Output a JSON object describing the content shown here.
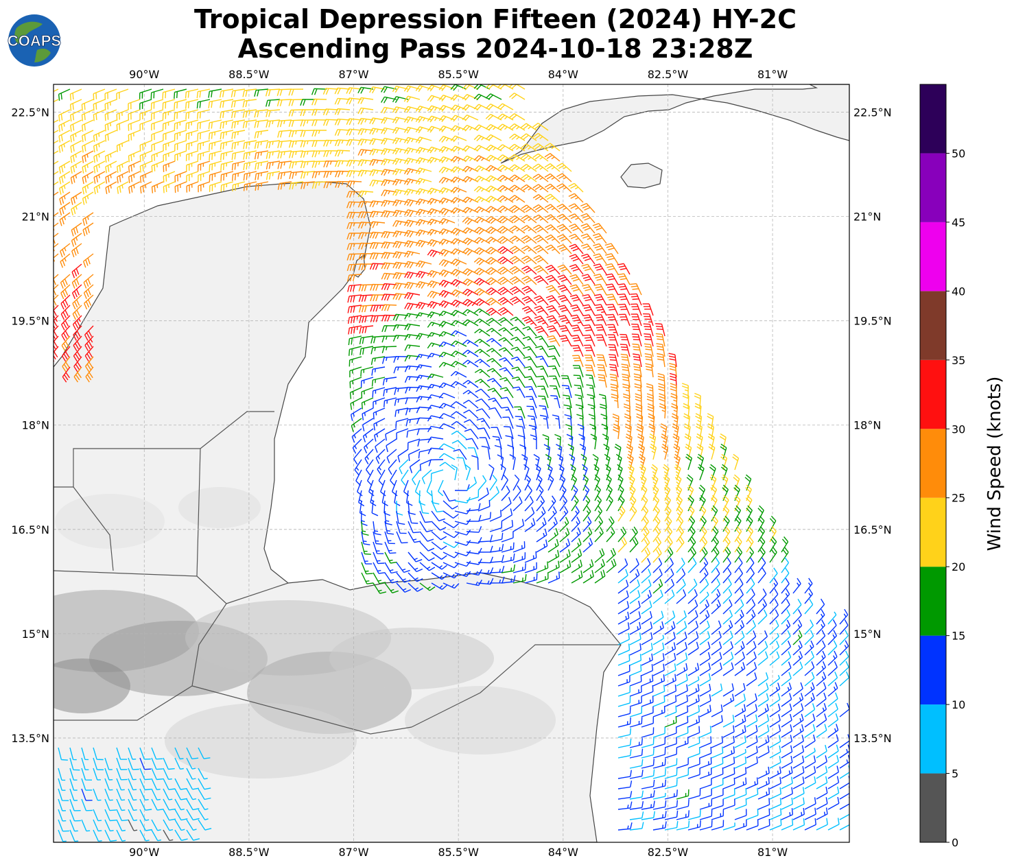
{
  "header": {
    "title_line1": "Tropical Depression Fifteen (2024) HY-2C",
    "title_line2": "Ascending Pass 2024-10-18 23:28Z",
    "logo_text": "COAPS"
  },
  "map": {
    "lon_range": [
      -91.3,
      -79.9
    ],
    "lat_range": [
      12.0,
      22.9
    ],
    "lon_ticks": [
      {
        "value": -90,
        "label": "90°W"
      },
      {
        "value": -88.5,
        "label": "88.5°W"
      },
      {
        "value": -87,
        "label": "87°W"
      },
      {
        "value": -85.5,
        "label": "85.5°W"
      },
      {
        "value": -84,
        "label": "84°W"
      },
      {
        "value": -82.5,
        "label": "82.5°W"
      },
      {
        "value": -81,
        "label": "81°W"
      }
    ],
    "lat_ticks": [
      {
        "value": 22.5,
        "label": "22.5°N"
      },
      {
        "value": 21,
        "label": "21°N"
      },
      {
        "value": 19.5,
        "label": "19.5°N"
      },
      {
        "value": 18,
        "label": "18°N"
      },
      {
        "value": 16.5,
        "label": "16.5°N"
      },
      {
        "value": 15,
        "label": "15°N"
      },
      {
        "value": 13.5,
        "label": "13.5°N"
      }
    ],
    "gridlines": true,
    "land_shading": "grayscale terrain",
    "storm_center": {
      "lon": -85.6,
      "lat": 17.2
    }
  },
  "colorbar": {
    "label": "Wind Speed (knots)",
    "ticks": [
      "0",
      "5",
      "10",
      "15",
      "20",
      "25",
      "30",
      "35",
      "40",
      "45",
      "50"
    ],
    "bins": [
      {
        "from": 0,
        "to": 5,
        "color": "#555555"
      },
      {
        "from": 5,
        "to": 10,
        "color": "#00bfff"
      },
      {
        "from": 10,
        "to": 15,
        "color": "#0033ff"
      },
      {
        "from": 15,
        "to": 20,
        "color": "#009900"
      },
      {
        "from": 20,
        "to": 25,
        "color": "#ffd21a"
      },
      {
        "from": 25,
        "to": 30,
        "color": "#ff8c0a"
      },
      {
        "from": 30,
        "to": 35,
        "color": "#ff1010"
      },
      {
        "from": 35,
        "to": 40,
        "color": "#7f3a2a"
      },
      {
        "from": 40,
        "to": 45,
        "color": "#ee00ee"
      },
      {
        "from": 45,
        "to": 50,
        "color": "#8800bb"
      },
      {
        "from": 50,
        "to": 55,
        "color": "#2d0059"
      }
    ]
  }
}
